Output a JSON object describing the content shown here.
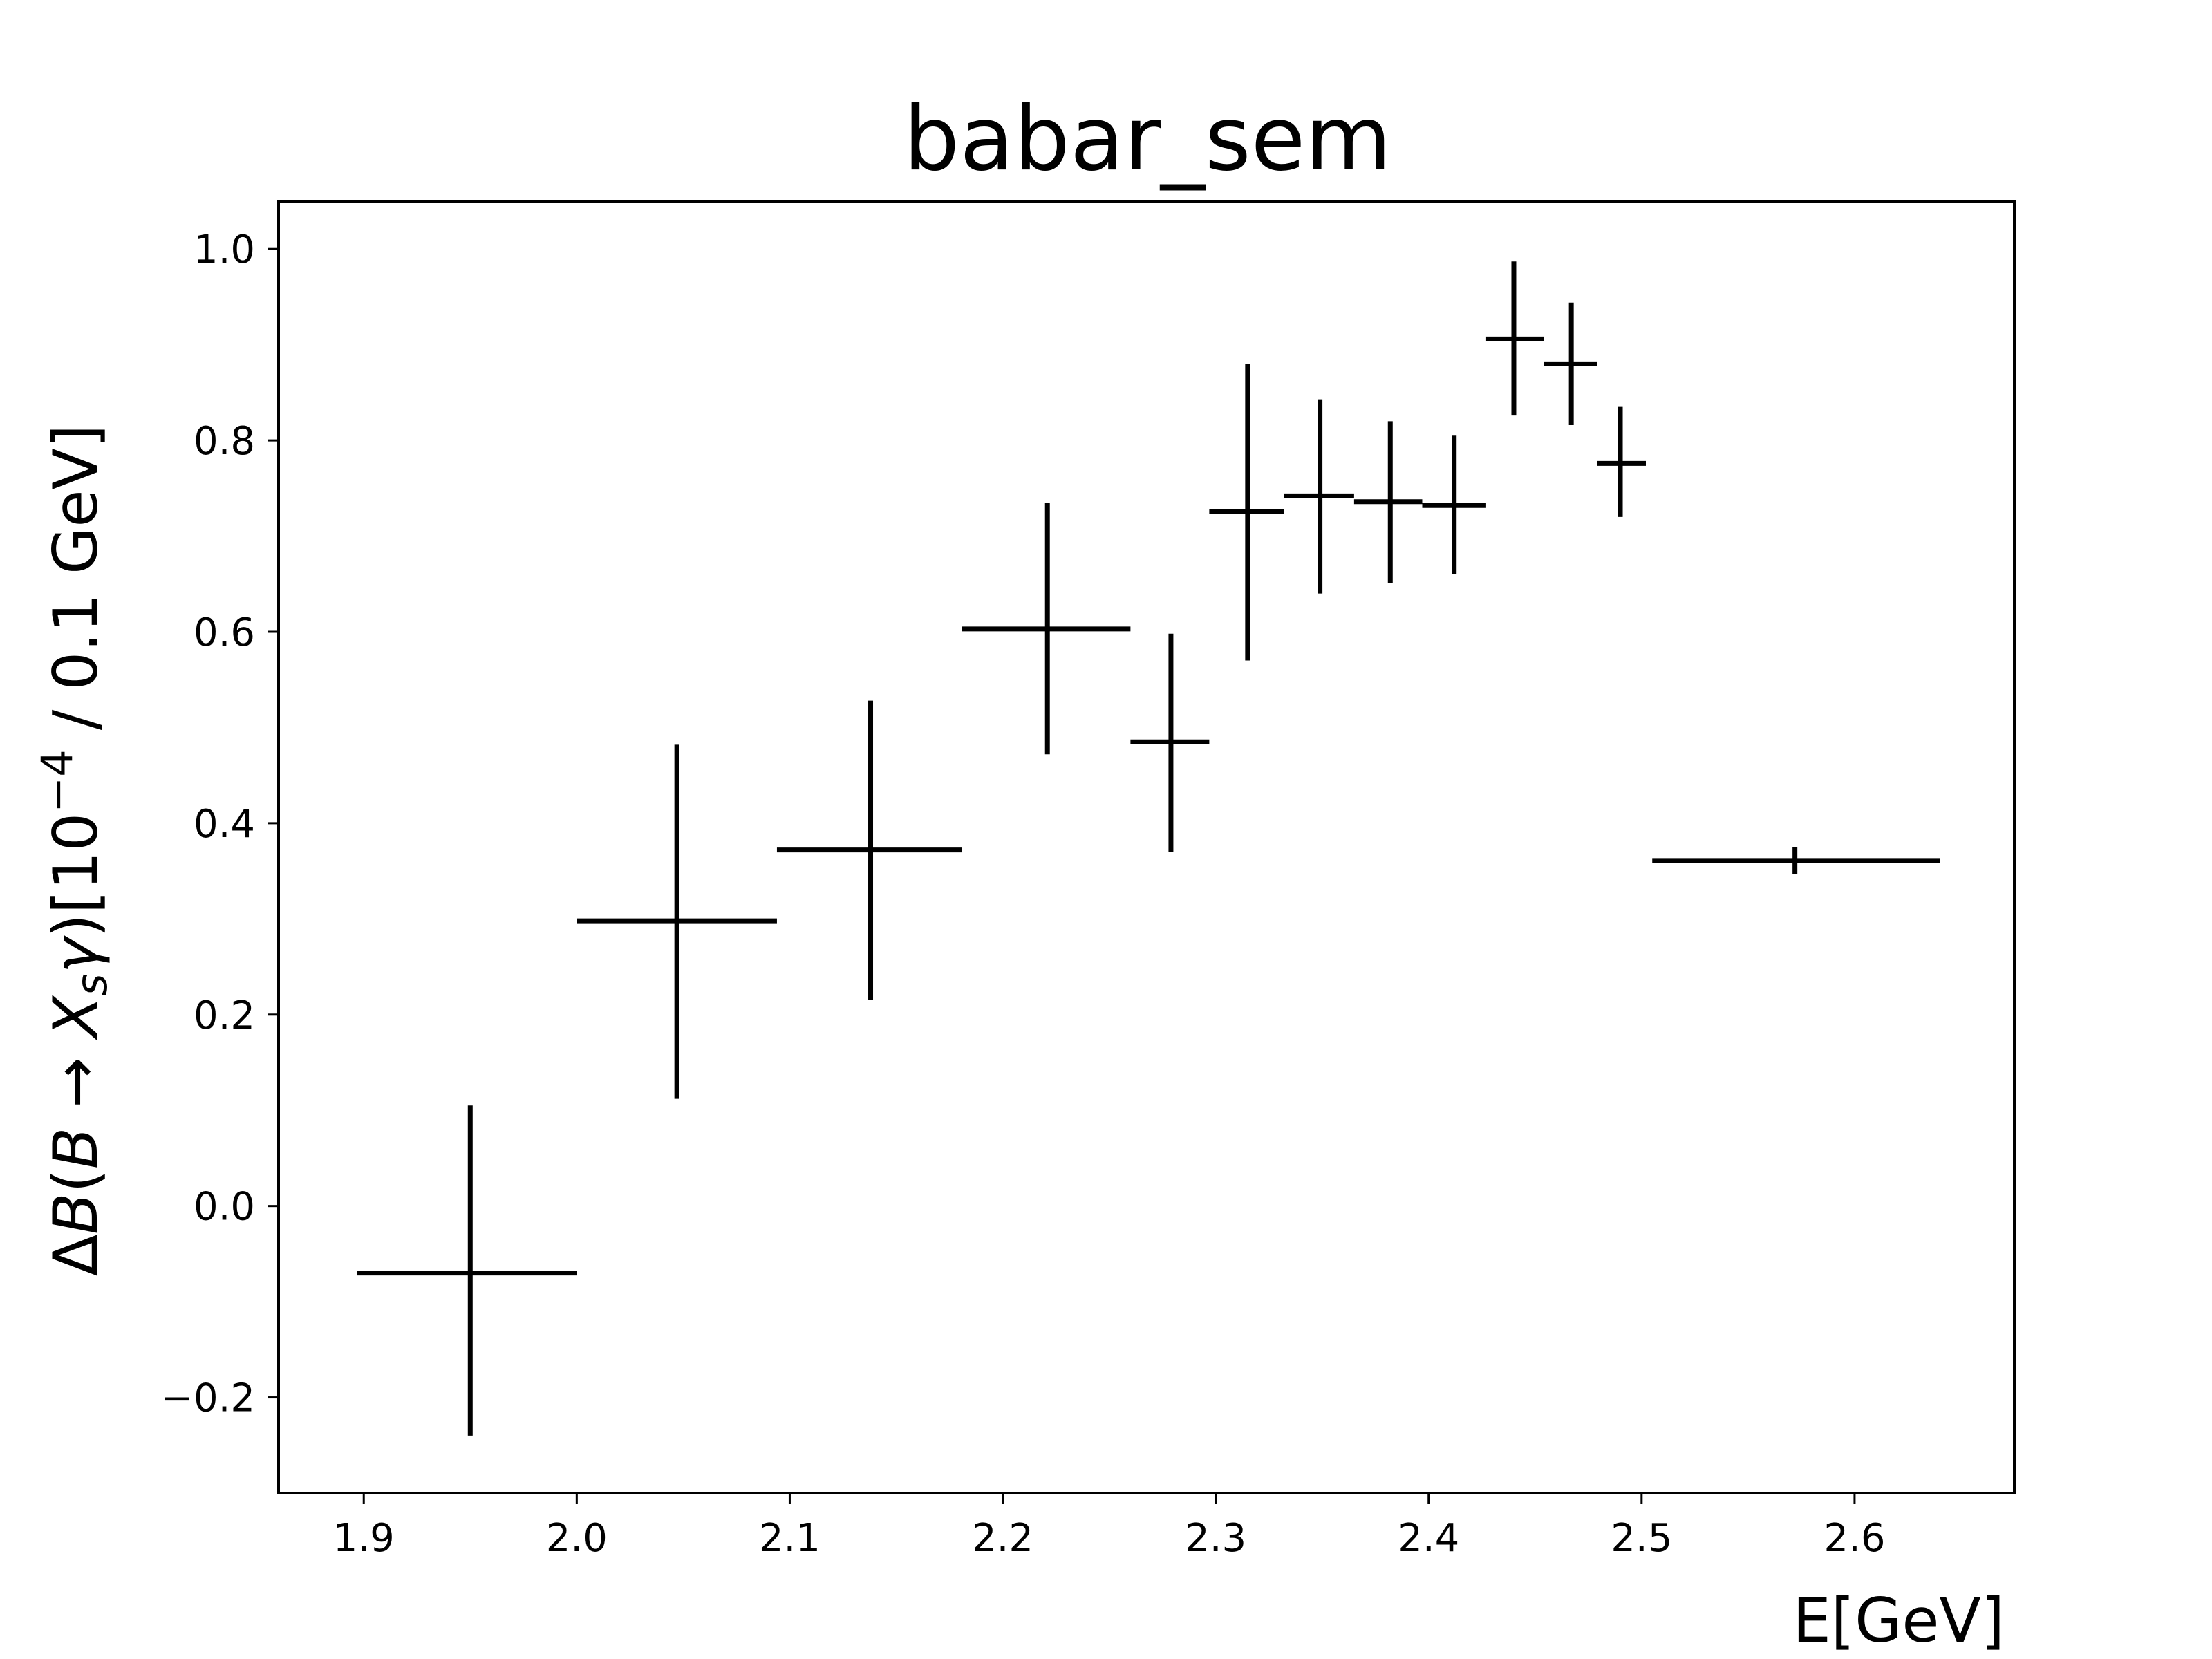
{
  "chart_data": {
    "type": "scatter",
    "title": "babar_sem",
    "xlabel": "E[GeV]",
    "ylabel": "ΔB(B→X_sγ)[10⁻⁴  / 0.1 GeV]",
    "ylabel_parts": {
      "pre": "Δ",
      "B1": "B",
      "paren_open": "(",
      "B2": "B",
      "arrow": " → ",
      "X": "X",
      "sub": "s",
      "gamma": "γ",
      "paren_close": ")[10",
      "sup": "−4",
      "post": "  / 0.1 GeV]"
    },
    "xlim": [
      1.86,
      2.675
    ],
    "ylim": [
      -0.3,
      1.05
    ],
    "xticks": [
      1.9,
      2.0,
      2.1,
      2.2,
      2.3,
      2.4,
      2.5,
      2.6
    ],
    "xtick_labels": [
      "1.9",
      "2.0",
      "2.1",
      "2.2",
      "2.3",
      "2.4",
      "2.5",
      "2.6"
    ],
    "yticks": [
      -0.2,
      0.0,
      0.2,
      0.4,
      0.6,
      0.8,
      1.0
    ],
    "ytick_labels": [
      "−0.2",
      "0.0",
      "0.2",
      "0.4",
      "0.6",
      "0.8",
      "1.0"
    ],
    "grid": false,
    "legend": "none",
    "color": "#000000",
    "points": [
      {
        "x": 1.95,
        "xlo": 1.897,
        "xhi": 2.0,
        "y": -0.07,
        "ylo": -0.24,
        "yhi": 0.105
      },
      {
        "x": 2.047,
        "xlo": 2.0,
        "xhi": 2.094,
        "y": 0.298,
        "ylo": 0.112,
        "yhi": 0.482
      },
      {
        "x": 2.138,
        "xlo": 2.094,
        "xhi": 2.181,
        "y": 0.372,
        "ylo": 0.215,
        "yhi": 0.528
      },
      {
        "x": 2.221,
        "xlo": 2.181,
        "xhi": 2.26,
        "y": 0.603,
        "ylo": 0.472,
        "yhi": 0.735
      },
      {
        "x": 2.279,
        "xlo": 2.26,
        "xhi": 2.297,
        "y": 0.485,
        "ylo": 0.37,
        "yhi": 0.598
      },
      {
        "x": 2.315,
        "xlo": 2.297,
        "xhi": 2.332,
        "y": 0.726,
        "ylo": 0.57,
        "yhi": 0.88
      },
      {
        "x": 2.349,
        "xlo": 2.332,
        "xhi": 2.365,
        "y": 0.742,
        "ylo": 0.64,
        "yhi": 0.843
      },
      {
        "x": 2.382,
        "xlo": 2.365,
        "xhi": 2.397,
        "y": 0.736,
        "ylo": 0.651,
        "yhi": 0.82
      },
      {
        "x": 2.412,
        "xlo": 2.397,
        "xhi": 2.427,
        "y": 0.732,
        "ylo": 0.66,
        "yhi": 0.805
      },
      {
        "x": 2.44,
        "xlo": 2.427,
        "xhi": 2.454,
        "y": 0.906,
        "ylo": 0.826,
        "yhi": 0.987
      },
      {
        "x": 2.467,
        "xlo": 2.454,
        "xhi": 2.479,
        "y": 0.88,
        "ylo": 0.816,
        "yhi": 0.944
      },
      {
        "x": 2.49,
        "xlo": 2.479,
        "xhi": 2.502,
        "y": 0.776,
        "ylo": 0.72,
        "yhi": 0.835
      },
      {
        "x": 2.572,
        "xlo": 2.505,
        "xhi": 2.64,
        "y": 0.361,
        "ylo": 0.347,
        "yhi": 0.375
      }
    ]
  }
}
